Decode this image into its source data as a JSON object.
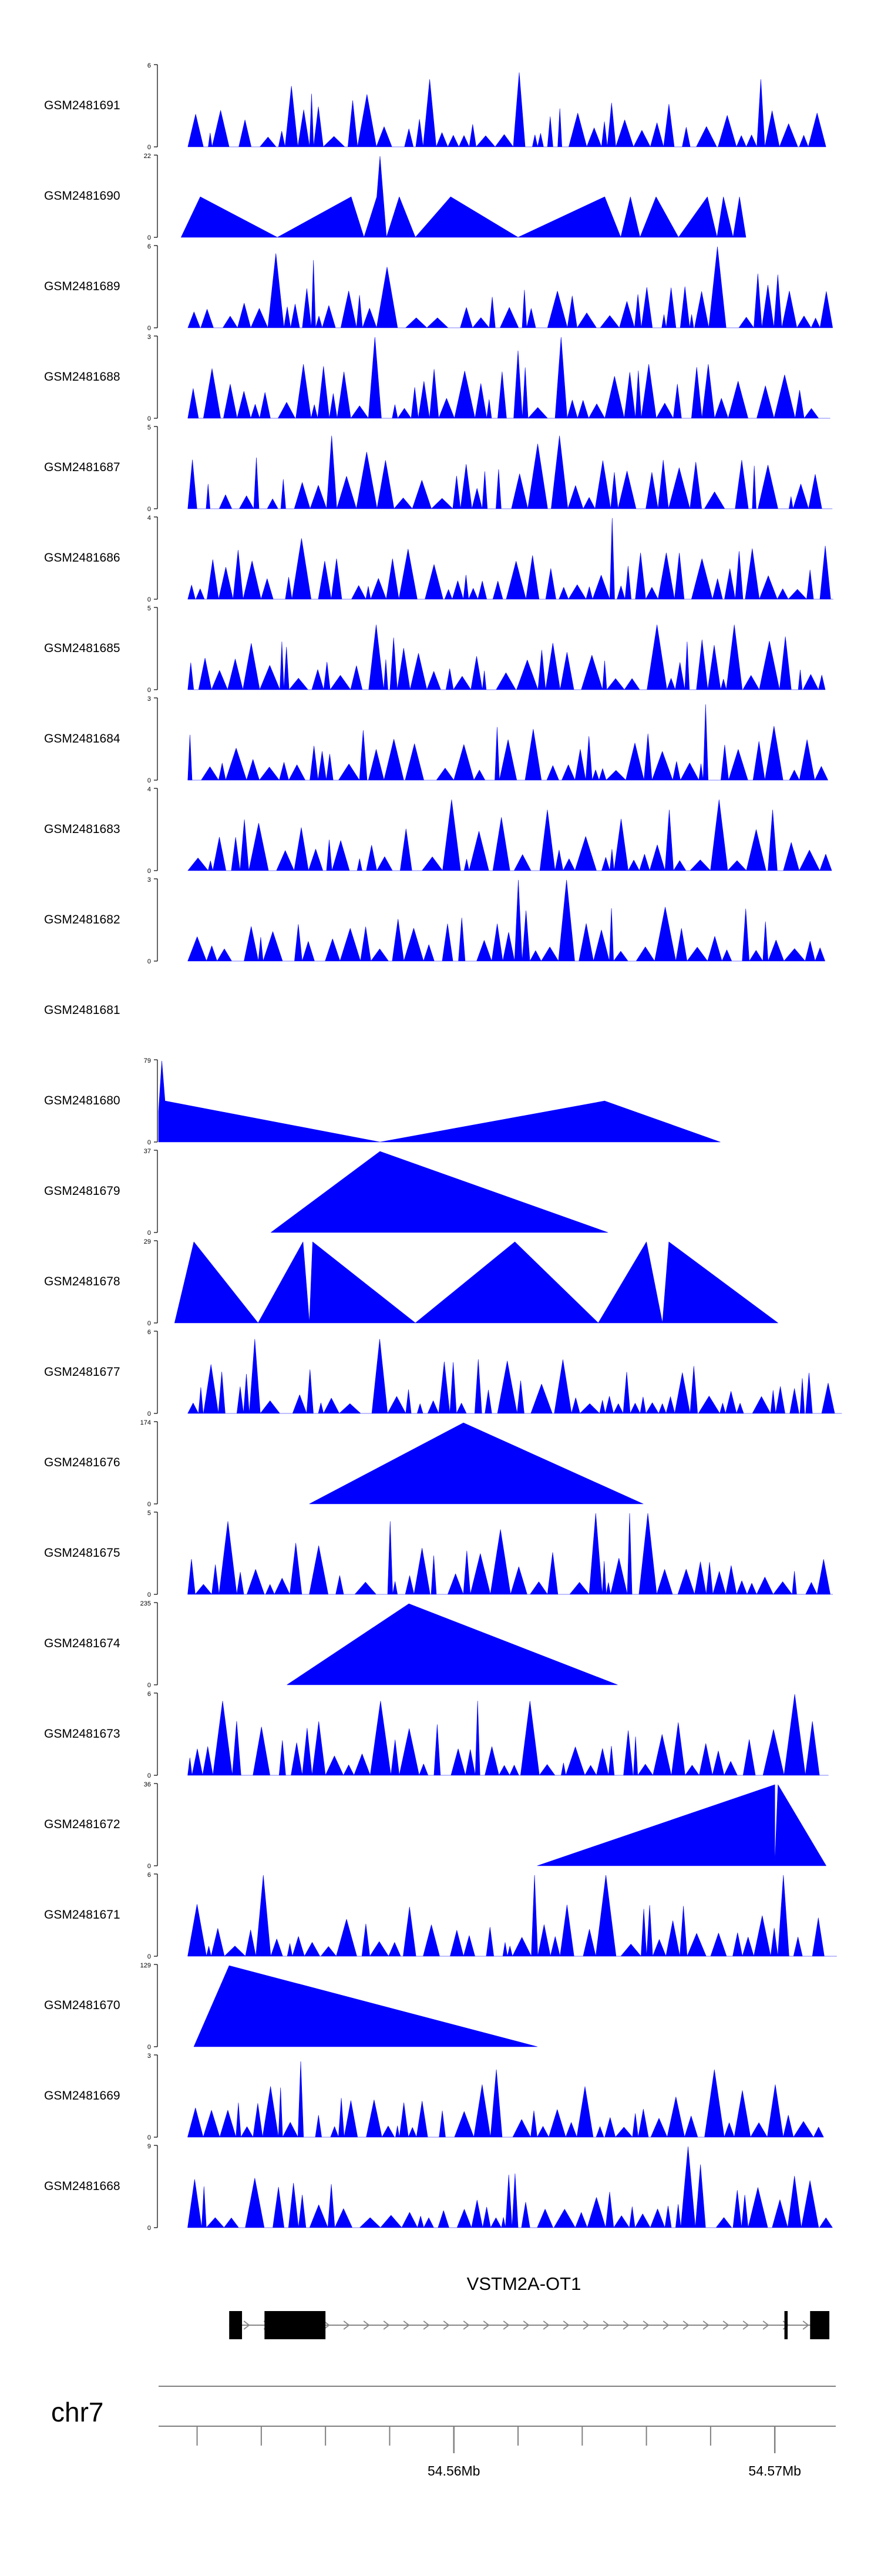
{
  "colors": {
    "signal": "#0000FF",
    "axis": "#000000",
    "gene": "#000000",
    "ideogram_line": "#808080"
  },
  "chart_data": {
    "type": "area",
    "title": "",
    "xlabel": "",
    "ylabel": "",
    "xlim": [
      54.5508,
      54.5719
    ],
    "x_units": "Mb",
    "chromosome": "chr7",
    "axis_ticks": [
      54.56,
      54.57
    ],
    "axis_tick_labels": [
      "54.56Mb",
      "54.57Mb"
    ],
    "gene": {
      "name": "VSTM2A-OT1",
      "strand": "+",
      "start": 54.553,
      "end": 54.5717,
      "exons": [
        [
          54.553,
          54.5534
        ],
        [
          54.5541,
          54.556
        ],
        [
          54.5703,
          54.5704
        ],
        [
          54.5711,
          54.5717
        ]
      ]
    },
    "series": [
      {
        "name": "GSM2481691",
        "ymax": 6,
        "ylim_labels": [
          "0",
          "6"
        ],
        "seed": 1691,
        "peaks": [
          [
            54.5538,
            2
          ],
          [
            54.5551,
            4.5
          ],
          [
            54.5593,
            5
          ],
          [
            54.562,
            5.5
          ],
          [
            54.564,
            2.5
          ],
          [
            54.5697,
            5
          ]
        ]
      },
      {
        "name": "GSM2481690",
        "ymax": 22,
        "ylim_labels": [
          "0",
          "22"
        ],
        "points": [
          [
            54.5515,
            0
          ],
          [
            54.5521,
            11
          ],
          [
            54.5545,
            0
          ],
          [
            54.5568,
            11
          ],
          [
            54.5572,
            0
          ],
          [
            54.5576,
            11
          ],
          [
            54.5577,
            22
          ],
          [
            54.5579,
            0
          ],
          [
            54.5583,
            11
          ],
          [
            54.5588,
            0
          ],
          [
            54.5599,
            11
          ],
          [
            54.562,
            0
          ],
          [
            54.5647,
            11
          ],
          [
            54.5652,
            0
          ],
          [
            54.5655,
            11
          ],
          [
            54.5658,
            0
          ],
          [
            54.5663,
            11
          ],
          [
            54.567,
            0
          ],
          [
            54.5679,
            11
          ],
          [
            54.5682,
            0
          ],
          [
            54.5684,
            11
          ],
          [
            54.5687,
            0
          ],
          [
            54.5689,
            11
          ],
          [
            54.5691,
            0
          ]
        ]
      },
      {
        "name": "GSM2481689",
        "ymax": 6,
        "ylim_labels": [
          "0",
          "6"
        ],
        "seed": 1689,
        "peaks": [
          [
            54.5545,
            5.5
          ],
          [
            54.5557,
            5
          ],
          [
            54.5583,
            4.5
          ],
          [
            54.566,
            3
          ],
          [
            54.5682,
            6
          ],
          [
            54.5695,
            4
          ]
        ]
      },
      {
        "name": "GSM2481688",
        "ymax": 3,
        "ylim_labels": [
          "0",
          "3"
        ],
        "seed": 1688,
        "peaks": [
          [
            54.5554,
            2
          ],
          [
            54.5575,
            3
          ],
          [
            54.5621,
            2.5
          ],
          [
            54.5633,
            3
          ],
          [
            54.5661,
            2
          ],
          [
            54.568,
            2
          ]
        ]
      },
      {
        "name": "GSM2481687",
        "ymax": 5,
        "ylim_labels": [
          "0",
          "5"
        ],
        "seed": 1687,
        "peaks": [
          [
            54.5563,
            4.5
          ],
          [
            54.557,
            3.5
          ],
          [
            54.5629,
            4
          ],
          [
            54.5632,
            4.5
          ],
          [
            54.5665,
            3
          ],
          [
            54.569,
            3
          ]
        ]
      },
      {
        "name": "GSM2481686",
        "ymax": 4,
        "ylim_labels": [
          "0",
          "4"
        ],
        "seed": 1686,
        "peaks": [
          [
            54.5553,
            3
          ],
          [
            54.5582,
            2
          ],
          [
            54.5648,
            4
          ],
          [
            54.5674,
            2
          ],
          [
            54.5692,
            2.5
          ]
        ]
      },
      {
        "name": "GSM2481685",
        "ymax": 5,
        "ylim_labels": [
          "0",
          "5"
        ],
        "seed": 1685,
        "peaks": [
          [
            54.5573,
            4.5
          ],
          [
            54.5576,
            4
          ],
          [
            54.5661,
            4
          ],
          [
            54.5689,
            4
          ],
          [
            54.5698,
            3
          ]
        ]
      },
      {
        "name": "GSM2481684",
        "ymax": 3,
        "ylim_labels": [
          "0",
          "3"
        ],
        "seed": 1684,
        "peaks": [
          [
            54.562,
            1.5
          ],
          [
            54.5678,
            2.8
          ],
          [
            54.5698,
            2
          ]
        ]
      },
      {
        "name": "GSM2481683",
        "ymax": 4,
        "ylim_labels": [
          "0",
          "4"
        ],
        "seed": 1683,
        "peaks": [
          [
            54.5597,
            3.5
          ],
          [
            54.5627,
            3
          ],
          [
            54.5666,
            3
          ],
          [
            54.5685,
            3.5
          ],
          [
            54.5702,
            3
          ]
        ]
      },
      {
        "name": "GSM2481682",
        "ymax": 3,
        "ylim_labels": [
          "0",
          "3"
        ],
        "seed": 1682,
        "peaks": [
          [
            54.5621,
            3
          ],
          [
            54.5634,
            3
          ],
          [
            54.5668,
            2
          ]
        ]
      },
      {
        "name": "GSM2481681",
        "ymax": 0,
        "ylim_labels": [
          "",
          ""
        ],
        "points": []
      },
      {
        "name": "GSM2481680",
        "ymax": 79,
        "ylim_labels": [
          "0",
          "79"
        ],
        "points": [
          [
            54.5508,
            0
          ],
          [
            54.5508,
            30
          ],
          [
            54.5509,
            79
          ],
          [
            54.551,
            40
          ],
          [
            54.5577,
            0
          ],
          [
            54.5647,
            40
          ],
          [
            54.5683,
            0
          ]
        ]
      },
      {
        "name": "GSM2481679",
        "ymax": 37,
        "ylim_labels": [
          "0",
          "37"
        ],
        "points": [
          [
            54.5543,
            0
          ],
          [
            54.5577,
            37
          ],
          [
            54.5648,
            0
          ]
        ]
      },
      {
        "name": "GSM2481678",
        "ymax": 29,
        "ylim_labels": [
          "0",
          "29"
        ],
        "points": [
          [
            54.5513,
            0
          ],
          [
            54.5519,
            29
          ],
          [
            54.5539,
            0
          ],
          [
            54.5553,
            29
          ],
          [
            54.5555,
            0
          ],
          [
            54.5556,
            29
          ],
          [
            54.5588,
            0
          ],
          [
            54.5619,
            29
          ],
          [
            54.5645,
            0
          ],
          [
            54.566,
            29
          ],
          [
            54.5665,
            0
          ],
          [
            54.5667,
            29
          ],
          [
            54.5701,
            0
          ]
        ]
      },
      {
        "name": "GSM2481677",
        "ymax": 6,
        "ylim_labels": [
          "0",
          "6"
        ],
        "seed": 1677,
        "peaks": [
          [
            54.554,
            5.5
          ],
          [
            54.5578,
            5.5
          ],
          [
            54.5606,
            4
          ],
          [
            54.5676,
            3.5
          ],
          [
            54.571,
            3
          ]
        ]
      },
      {
        "name": "GSM2481676",
        "ymax": 174,
        "ylim_labels": [
          "0",
          "174"
        ],
        "points": [
          [
            54.5555,
            0
          ],
          [
            54.5603,
            174
          ],
          [
            54.5659,
            0
          ]
        ]
      },
      {
        "name": "GSM2481675",
        "ymax": 5,
        "ylim_labels": [
          "0",
          "5"
        ],
        "seed": 1675,
        "peaks": [
          [
            54.553,
            4.5
          ],
          [
            54.5578,
            4.5
          ],
          [
            54.5615,
            4
          ],
          [
            54.5645,
            5
          ],
          [
            54.5655,
            5
          ],
          [
            54.5663,
            5
          ]
        ]
      },
      {
        "name": "GSM2481674",
        "ymax": 235,
        "ylim_labels": [
          "0",
          "235"
        ],
        "points": [
          [
            54.5548,
            0
          ],
          [
            54.5586,
            235
          ],
          [
            54.5651,
            0
          ]
        ]
      },
      {
        "name": "GSM2481673",
        "ymax": 6,
        "ylim_labels": [
          "0",
          "6"
        ],
        "seed": 1673,
        "peaks": [
          [
            54.553,
            5.5
          ],
          [
            54.5579,
            5.5
          ],
          [
            54.5608,
            5.5
          ],
          [
            54.5625,
            5.5
          ],
          [
            54.5708,
            6
          ]
        ]
      },
      {
        "name": "GSM2481672",
        "ymax": 36,
        "ylim_labels": [
          "0",
          "36"
        ],
        "points": [
          [
            54.5626,
            0
          ],
          [
            54.57,
            36
          ],
          [
            54.57,
            0
          ],
          [
            54.5701,
            36
          ],
          [
            54.5716,
            0
          ]
        ]
      },
      {
        "name": "GSM2481671",
        "ymax": 6,
        "ylim_labels": [
          "0",
          "6"
        ],
        "seed": 1671,
        "peaks": [
          [
            54.5542,
            6
          ],
          [
            54.5625,
            6
          ],
          [
            54.5645,
            6
          ],
          [
            54.5702,
            6
          ]
        ]
      },
      {
        "name": "GSM2481670",
        "ymax": 129,
        "ylim_labels": [
          "0",
          "129"
        ],
        "points": [
          [
            54.5519,
            0
          ],
          [
            54.553,
            129
          ],
          [
            54.5626,
            0
          ]
        ]
      },
      {
        "name": "GSM2481669",
        "ymax": 3,
        "ylim_labels": [
          "0",
          "3"
        ],
        "seed": 1669,
        "peaks": [
          [
            54.5555,
            2.8
          ],
          [
            54.5612,
            2.5
          ],
          [
            54.5679,
            2.5
          ]
        ]
      },
      {
        "name": "GSM2481668",
        "ymax": 9,
        "ylim_labels": [
          "0",
          "9"
        ],
        "seed": 1668,
        "peaks": [
          [
            54.5535,
            5.5
          ],
          [
            54.5674,
            9
          ],
          [
            54.5677,
            7
          ]
        ]
      }
    ]
  }
}
